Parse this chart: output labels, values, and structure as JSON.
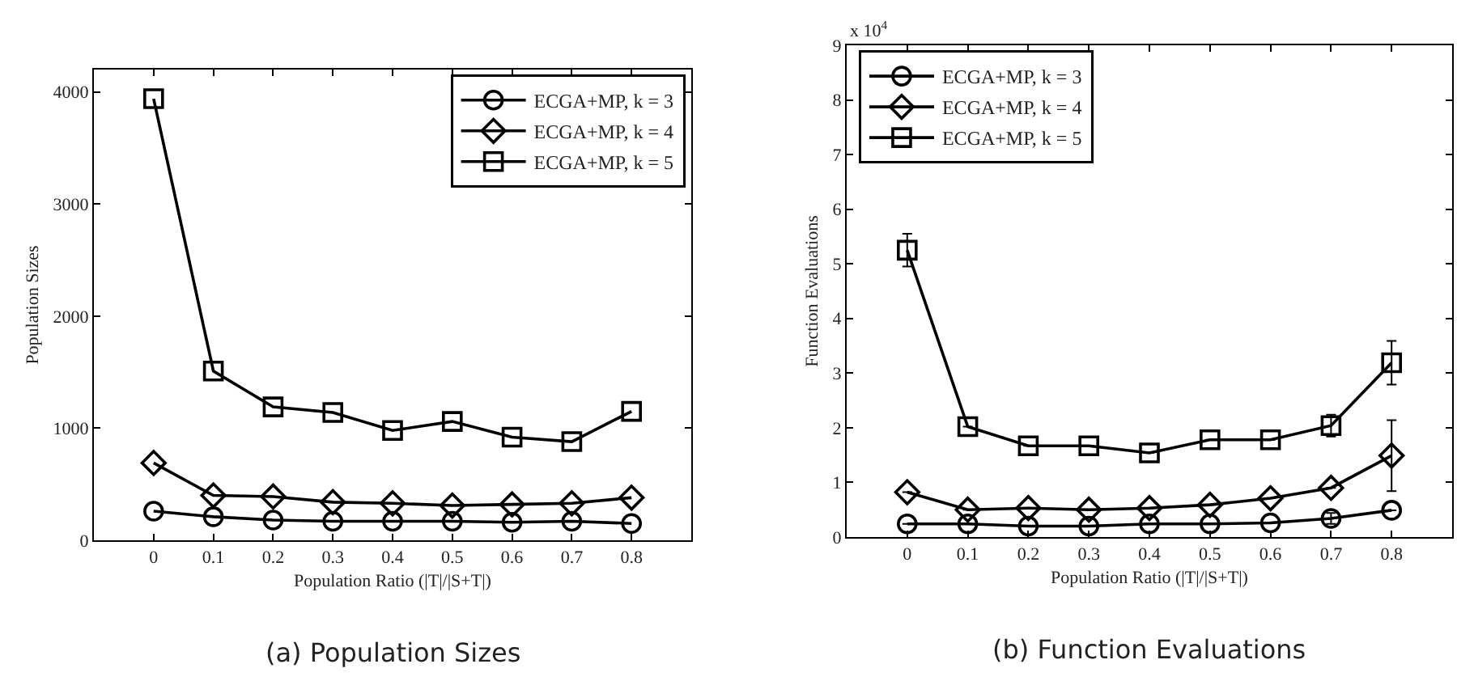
{
  "chart_data": [
    {
      "type": "line",
      "title": "(a) Population Sizes",
      "xlabel": "Population Ratio (|T|/|S+T|)",
      "ylabel": "Population Sizes",
      "x": [
        0,
        0.1,
        0.2,
        0.3,
        0.4,
        0.5,
        0.6,
        0.7,
        0.8
      ],
      "series": [
        {
          "name": "ECGA+MP, k = 3",
          "color": "#000000",
          "marker": "circle",
          "values": [
            260,
            210,
            180,
            170,
            170,
            170,
            160,
            170,
            150
          ]
        },
        {
          "name": "ECGA+MP, k = 4",
          "color": "#000000",
          "marker": "diamond",
          "values": [
            690,
            400,
            390,
            340,
            330,
            310,
            320,
            330,
            380
          ]
        },
        {
          "name": "ECGA+MP, k = 5",
          "color": "#000000",
          "marker": "square",
          "values": [
            3940,
            1510,
            1190,
            1140,
            980,
            1060,
            920,
            880,
            1150
          ]
        }
      ],
      "xlim": [
        -0.1,
        0.9
      ],
      "xticks": [
        0,
        0.1,
        0.2,
        0.3,
        0.4,
        0.5,
        0.6,
        0.7,
        0.8
      ],
      "ylim": [
        0,
        4200
      ],
      "yticks": [
        0,
        1000,
        2000,
        3000,
        4000
      ],
      "grid": false,
      "legend": "top right",
      "line_style": "solid"
    },
    {
      "type": "line",
      "title": "(b) Function Evaluations",
      "xlabel": "Population Ratio (|T|/|S+T|)",
      "ylabel": "Function Evaluations",
      "annotations": [
        "x 10$^{4}$"
      ],
      "x": [
        0,
        0.1,
        0.2,
        0.3,
        0.4,
        0.5,
        0.6,
        0.7,
        0.8
      ],
      "series": [
        {
          "name": "ECGA+MP, k = 3",
          "color": "#000000",
          "marker": "circle",
          "values": [
            0.24,
            0.24,
            0.2,
            0.2,
            0.24,
            0.24,
            0.26,
            0.34,
            0.49
          ],
          "errors": [
            null,
            null,
            null,
            null,
            null,
            null,
            null,
            0.1,
            null
          ]
        },
        {
          "name": "ECGA+MP, k = 4",
          "color": "#000000",
          "marker": "diamond",
          "values": [
            0.82,
            0.5,
            0.53,
            0.5,
            0.53,
            0.59,
            0.71,
            0.9,
            1.49
          ],
          "errors": [
            null,
            null,
            null,
            null,
            null,
            null,
            null,
            null,
            0.65
          ]
        },
        {
          "name": "ECGA+MP, k = 5",
          "color": "#000000",
          "marker": "square",
          "values": [
            5.25,
            2.02,
            1.67,
            1.67,
            1.54,
            1.78,
            1.78,
            2.04,
            3.19
          ],
          "errors": [
            0.3,
            null,
            null,
            null,
            null,
            null,
            null,
            0.2,
            0.4
          ]
        }
      ],
      "xlim": [
        -0.1,
        0.9
      ],
      "xticks": [
        0,
        0.1,
        0.2,
        0.3,
        0.4,
        0.5,
        0.6,
        0.7,
        0.8
      ],
      "ylim": [
        0,
        9
      ],
      "yticks": [
        0,
        1,
        2,
        3,
        4,
        5,
        6,
        7,
        8,
        9
      ],
      "grid": false,
      "legend": "top left",
      "line_style": "solid"
    }
  ]
}
